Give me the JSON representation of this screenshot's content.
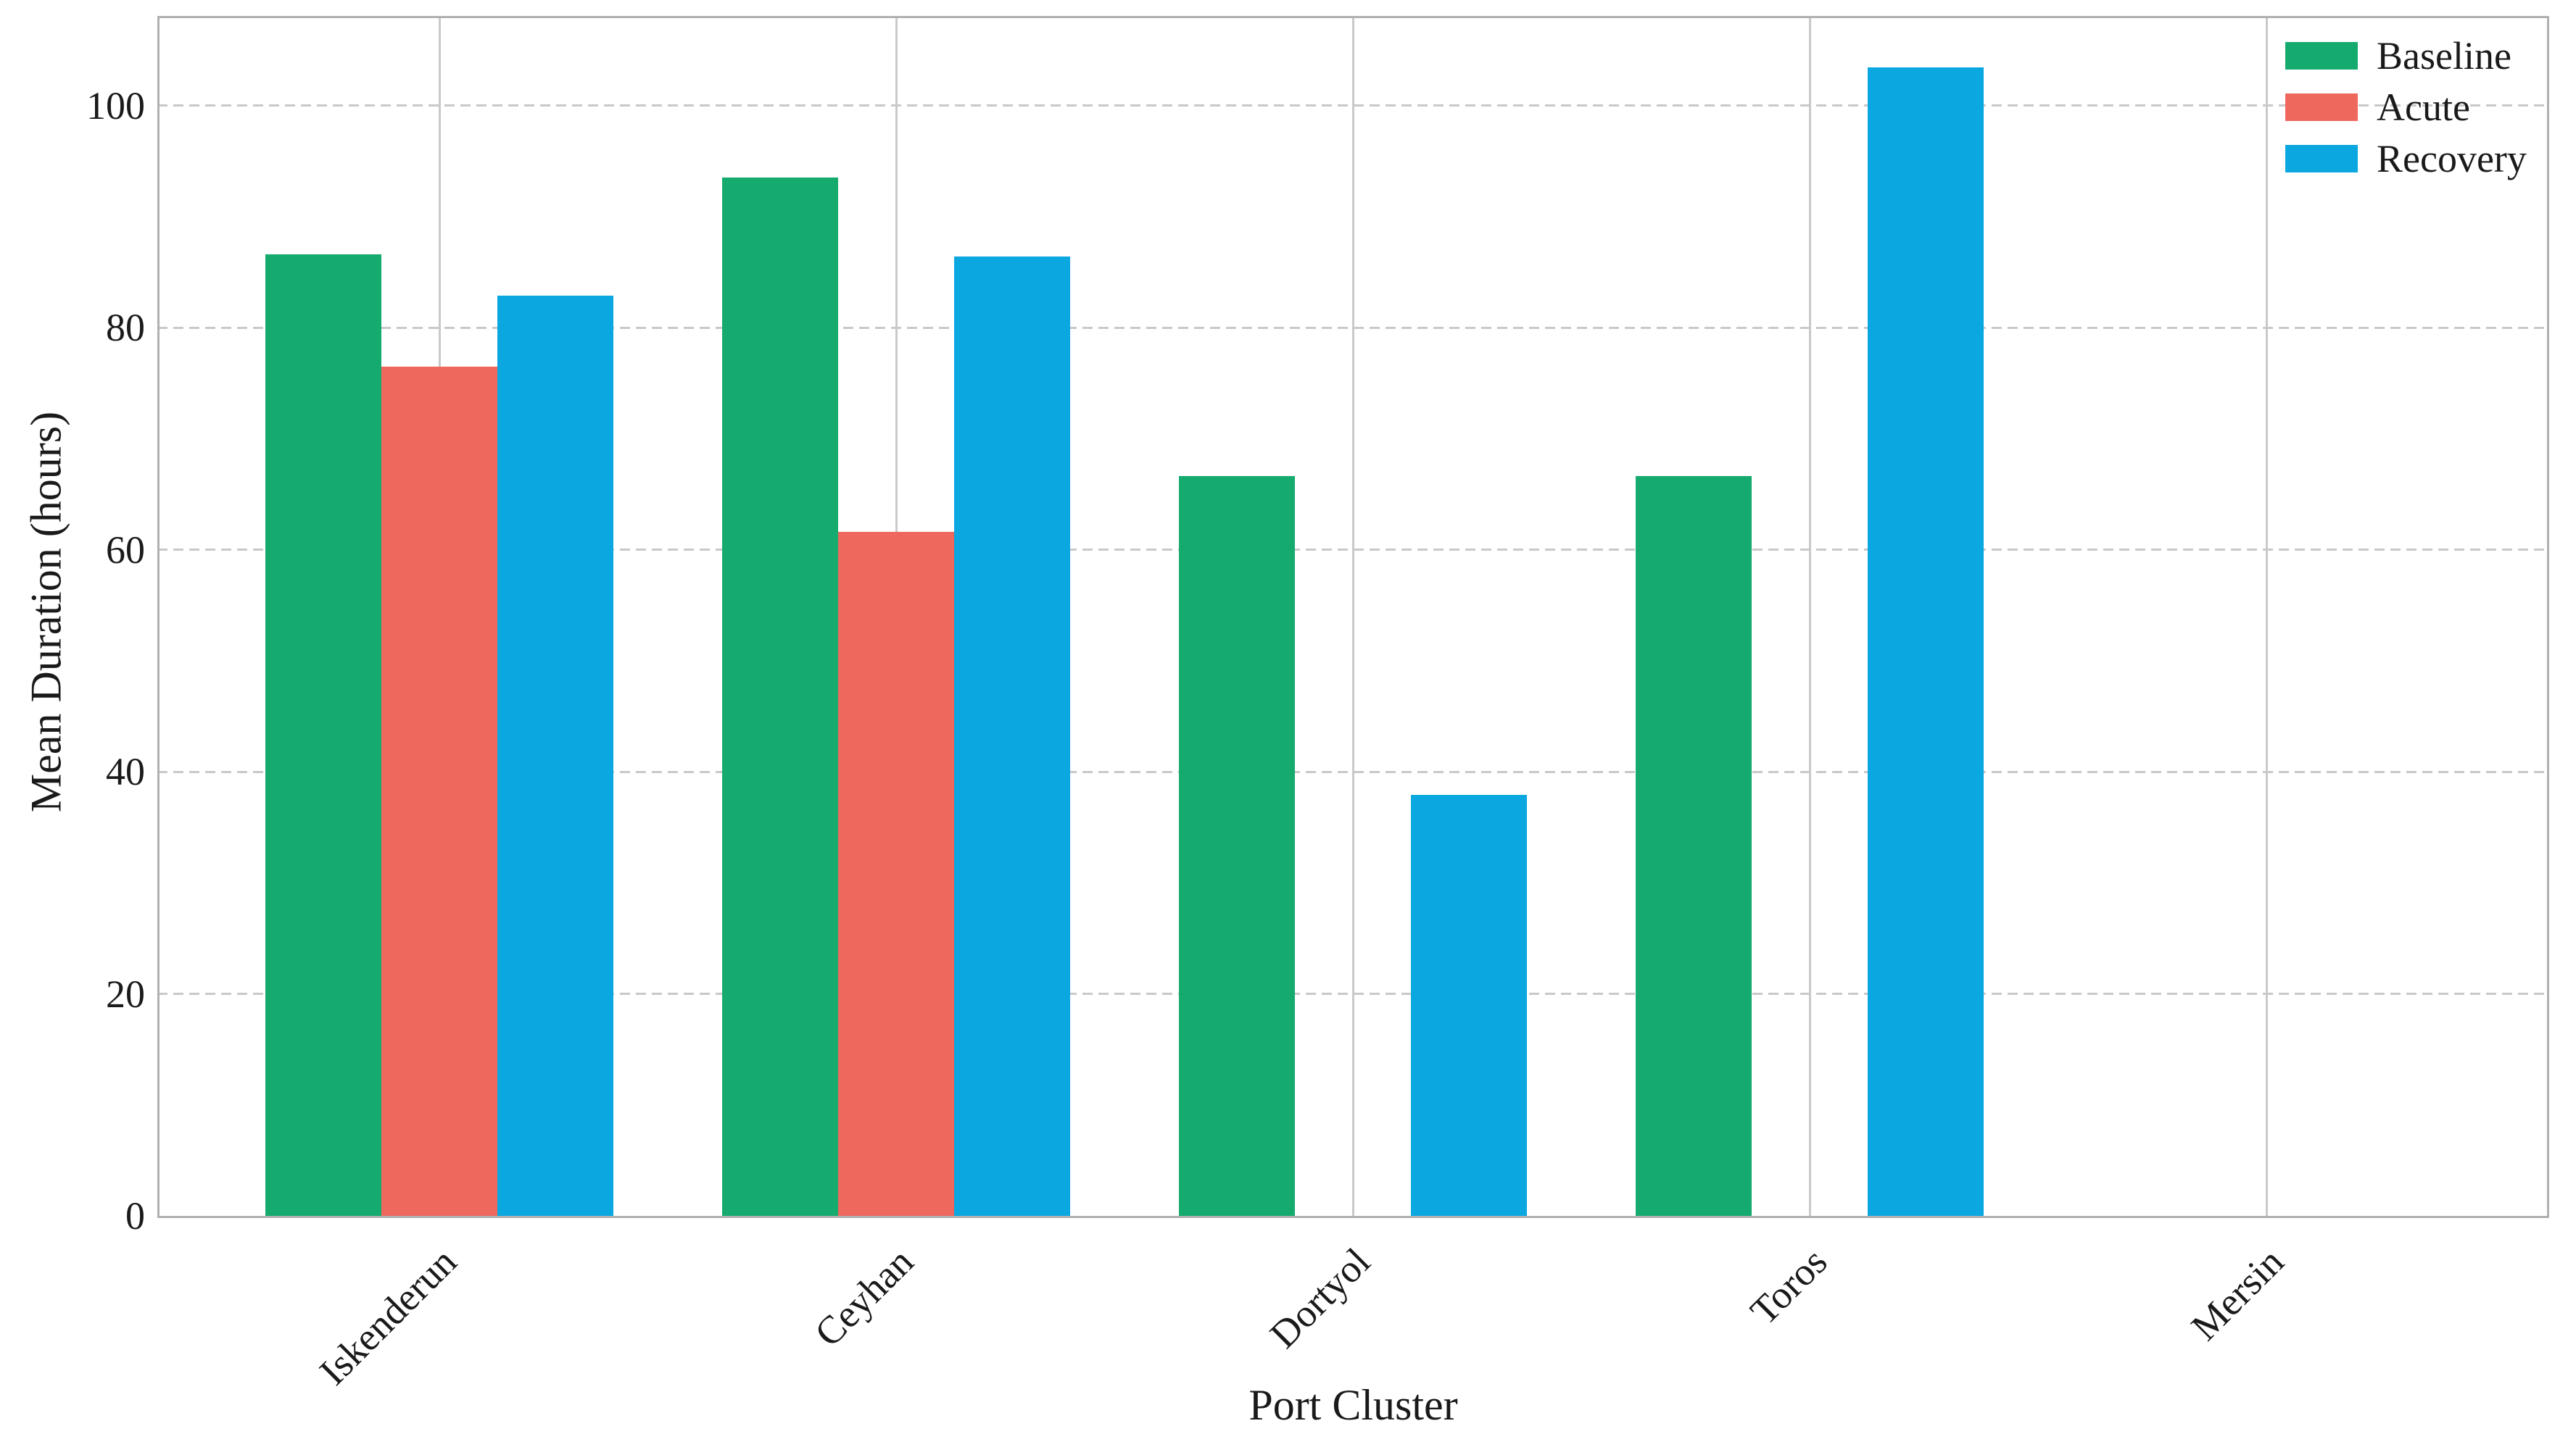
{
  "chart_data": {
    "type": "bar",
    "title": "",
    "xlabel": "Port Cluster",
    "ylabel": "Mean Duration (hours)",
    "categories": [
      "Iskenderun",
      "Ceyhan",
      "Dortyol",
      "Toros",
      "Mersin"
    ],
    "series": [
      {
        "name": "Baseline",
        "color": "#16ab6e",
        "values": [
          86.6,
          93.5,
          66.6,
          66.6,
          null
        ]
      },
      {
        "name": "Acute",
        "color": "#ee685d",
        "values": [
          76.5,
          61.6,
          null,
          null,
          null
        ]
      },
      {
        "name": "Recovery",
        "color": "#0aa7e0",
        "values": [
          82.9,
          86.4,
          37.9,
          103.4,
          null
        ]
      }
    ],
    "yticks": [
      0,
      20,
      40,
      60,
      80,
      100
    ],
    "ylim": [
      0,
      108
    ],
    "grid": {
      "horizontal": "dashed",
      "vertical": "solid"
    },
    "legend_position": "upper-right",
    "colors": {
      "grid": "#c9c9c9",
      "spine": "#b0b0b0",
      "text": "#1a1a1a",
      "background": "#ffffff"
    }
  }
}
